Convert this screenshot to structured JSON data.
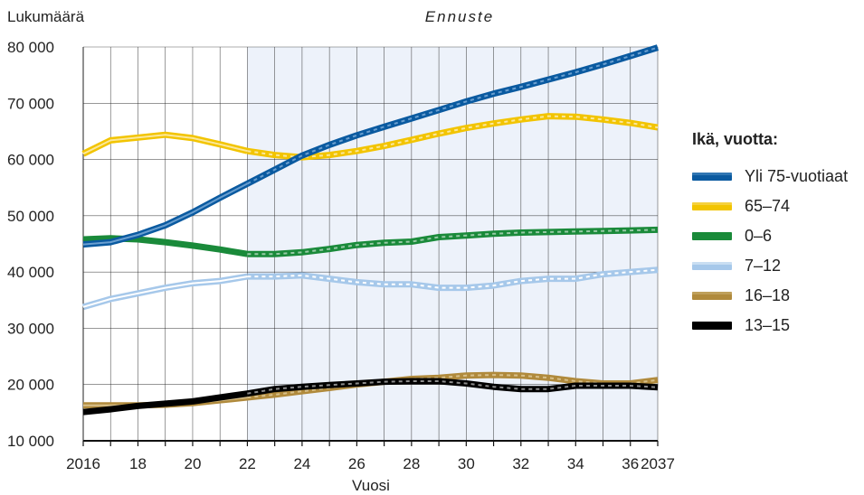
{
  "chart_data": {
    "type": "line",
    "ylabel": "Lukumäärä",
    "xlabel": "Vuosi",
    "forecast_label": "Ennuste",
    "forecast_start": 2022,
    "xlim": [
      2016,
      2037
    ],
    "ylim": [
      10000,
      80000
    ],
    "yticks": [
      10000,
      20000,
      30000,
      40000,
      50000,
      60000,
      70000,
      80000
    ],
    "ytick_labels": [
      "10 000",
      "20 000",
      "30 000",
      "40 000",
      "50 000",
      "60 000",
      "70 000",
      "80 000"
    ],
    "xticks": [
      2016,
      2018,
      2020,
      2022,
      2024,
      2026,
      2028,
      2030,
      2032,
      2034,
      2036,
      2037
    ],
    "xtick_labels": [
      "2016",
      "18",
      "20",
      "22",
      "24",
      "26",
      "28",
      "30",
      "32",
      "34",
      "36",
      "2037"
    ],
    "grid": true,
    "legend_title": "Ikä, vuotta:",
    "legend_position": "right",
    "x": [
      2016,
      2017,
      2018,
      2019,
      2020,
      2021,
      2022,
      2023,
      2024,
      2025,
      2026,
      2027,
      2028,
      2029,
      2030,
      2031,
      2032,
      2033,
      2034,
      2035,
      2036,
      2037
    ],
    "series": [
      {
        "name": "65–74",
        "color": "#f2c400",
        "light": "#fbe79a",
        "values": [
          61000,
          63400,
          63900,
          64400,
          63800,
          62700,
          61500,
          60800,
          60400,
          60800,
          61500,
          62400,
          63500,
          64600,
          65600,
          66400,
          67100,
          67700,
          67600,
          67100,
          66500,
          65700
        ]
      },
      {
        "name": "0–6",
        "color": "#1a8a3a",
        "light": "#1a8a3a",
        "values": [
          45800,
          46000,
          45800,
          45300,
          44700,
          44000,
          43200,
          43200,
          43500,
          44100,
          44800,
          45200,
          45400,
          46200,
          46500,
          46800,
          47000,
          47100,
          47200,
          47300,
          47400,
          47500
        ]
      },
      {
        "name": "7–12",
        "color": "#a6c8ea",
        "light": "#ffffff",
        "values": [
          33800,
          35200,
          36200,
          37200,
          38000,
          38400,
          39200,
          39200,
          39400,
          38800,
          38200,
          37800,
          37800,
          37200,
          37200,
          37600,
          38400,
          38800,
          38800,
          39600,
          40000,
          40400
        ]
      },
      {
        "name": "16–18",
        "color": "#b08a3c",
        "light": "#d8c08a",
        "values": [
          16300,
          16300,
          16300,
          16400,
          16700,
          17200,
          17700,
          18200,
          18800,
          19400,
          20000,
          20500,
          21000,
          21200,
          21600,
          21700,
          21600,
          21200,
          20600,
          20200,
          20200,
          20800
        ]
      },
      {
        "name": "13–15",
        "color": "#000000",
        "light": "#000000",
        "values": [
          15100,
          15600,
          16200,
          16600,
          17000,
          17700,
          18400,
          19200,
          19600,
          19900,
          20200,
          20500,
          20600,
          20600,
          20200,
          19600,
          19200,
          19200,
          19800,
          19800,
          19800,
          19500
        ]
      },
      {
        "name": "Yli 75-vuotiaat",
        "color": "#0a5aa0",
        "light": "#6a9fd0",
        "values": [
          44900,
          45300,
          46600,
          48300,
          50600,
          53200,
          55700,
          58200,
          60700,
          62600,
          64300,
          65800,
          67300,
          68800,
          70300,
          71700,
          72900,
          74200,
          75500,
          76900,
          78400,
          79900
        ]
      }
    ],
    "legend_order": [
      "Yli 75-vuotiaat",
      "65–74",
      "0–6",
      "7–12",
      "16–18",
      "13–15"
    ]
  }
}
